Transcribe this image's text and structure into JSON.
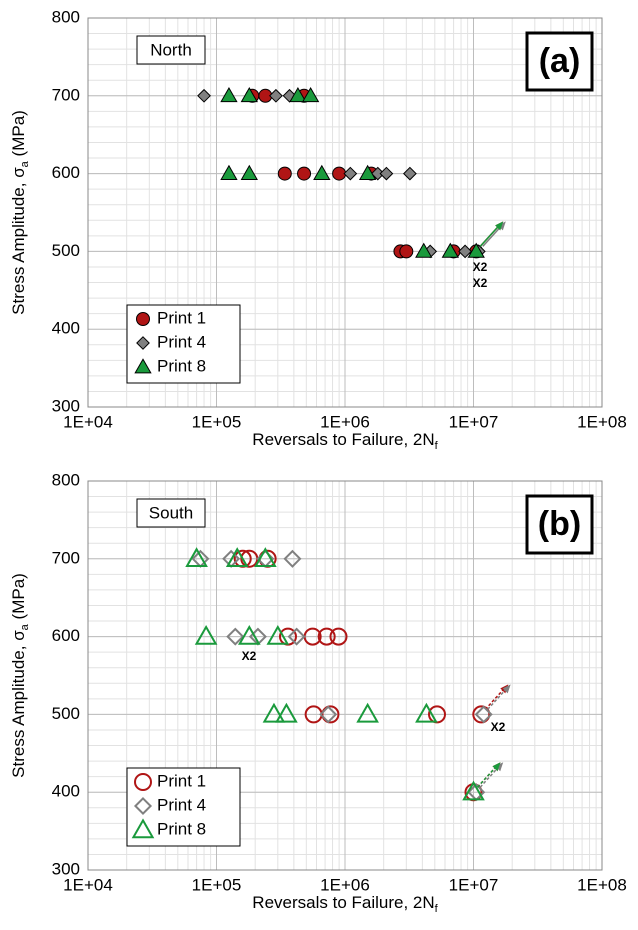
{
  "chart_data": [
    {
      "type": "scatter",
      "label_box": "North",
      "panel_label": "(a)",
      "x_scale": "log",
      "grid": true,
      "minor_grid": true,
      "legend": "lower left",
      "filled": true,
      "x_label": [
        "Reversals to Failure, 2N",
        "f"
      ],
      "y_label": [
        "Stress Amplitude, σ",
        "a",
        " (MPa)"
      ],
      "xlim": [
        10000,
        100000000
      ],
      "xticks": [
        {
          "value": 10000,
          "label": "1E+04"
        },
        {
          "value": 100000,
          "label": "1E+05"
        },
        {
          "value": 1000000,
          "label": "1E+06"
        },
        {
          "value": 10000000,
          "label": "1E+07"
        },
        {
          "value": 100000000,
          "label": "1E+08"
        }
      ],
      "ylim": [
        300,
        800
      ],
      "yticks": [
        300,
        400,
        500,
        600,
        700,
        800
      ],
      "series": [
        {
          "name": "Print 1",
          "marker": "circle",
          "color": "#b01515",
          "x": [
            190000,
            240000,
            480000,
            340000,
            480000,
            900000,
            1600000,
            2700000,
            3000000,
            7000000,
            10500000
          ],
          "values": [
            700,
            700,
            700,
            600,
            600,
            600,
            600,
            500,
            500,
            500,
            500
          ]
        },
        {
          "name": "Print 4",
          "marker": "diamond",
          "color": "#808080",
          "x": [
            80000,
            290000,
            370000,
            1100000,
            1800000,
            2100000,
            3200000,
            4600000,
            8600000,
            11000000
          ],
          "values": [
            700,
            700,
            700,
            600,
            600,
            600,
            600,
            500,
            500,
            500
          ]
        },
        {
          "name": "Print 8",
          "marker": "triangle",
          "color": "#1a9a3c",
          "x": [
            125000,
            180000,
            430000,
            540000,
            125000,
            180000,
            660000,
            1500000,
            4100000,
            6600000,
            10500000
          ],
          "values": [
            700,
            700,
            700,
            700,
            600,
            600,
            600,
            600,
            500,
            500,
            500
          ]
        }
      ],
      "annotations": [
        {
          "text": "X2",
          "color": "#1a9a3c"
        },
        {
          "text": "X2",
          "color": "#000000"
        }
      ]
    },
    {
      "type": "scatter",
      "label_box": "South",
      "panel_label": "(b)",
      "x_scale": "log",
      "grid": true,
      "minor_grid": true,
      "legend": "lower left",
      "filled": false,
      "x_label": [
        "Reversals to Failure, 2N",
        "f"
      ],
      "y_label": [
        "Stress Amplitude, σ",
        "a",
        " (MPa)"
      ],
      "xlim": [
        10000,
        100000000
      ],
      "xticks": [
        {
          "value": 10000,
          "label": "1E+04"
        },
        {
          "value": 100000,
          "label": "1E+05"
        },
        {
          "value": 1000000,
          "label": "1E+06"
        },
        {
          "value": 10000000,
          "label": "1E+07"
        },
        {
          "value": 100000000,
          "label": "1E+08"
        }
      ],
      "ylim": [
        300,
        800
      ],
      "yticks": [
        300,
        400,
        500,
        600,
        700,
        800
      ],
      "series": [
        {
          "name": "Print 1",
          "marker": "circle",
          "color": "#b01515",
          "x": [
            160000,
            180000,
            250000,
            360000,
            560000,
            720000,
            890000,
            570000,
            770000,
            5200000,
            11500000,
            10000000
          ],
          "values": [
            700,
            700,
            700,
            600,
            600,
            600,
            600,
            500,
            500,
            500,
            500,
            400
          ]
        },
        {
          "name": "Print 4",
          "marker": "diamond",
          "color": "#808080",
          "x": [
            75000,
            130000,
            240000,
            390000,
            140000,
            210000,
            420000,
            740000,
            12000000,
            10500000
          ],
          "values": [
            700,
            700,
            700,
            700,
            600,
            600,
            600,
            500,
            500,
            400
          ]
        },
        {
          "name": "Print 8",
          "marker": "triangle",
          "color": "#1a9a3c",
          "x": [
            70000,
            145000,
            240000,
            83000,
            180000,
            300000,
            280000,
            350000,
            1500000,
            4300000,
            10000000
          ],
          "values": [
            700,
            700,
            700,
            600,
            600,
            600,
            500,
            500,
            500,
            500,
            400
          ]
        }
      ],
      "annotations": [
        {
          "text": "X2",
          "color": "#1a9a3c"
        },
        {
          "text": "X2",
          "color": "#000000"
        }
      ]
    }
  ]
}
